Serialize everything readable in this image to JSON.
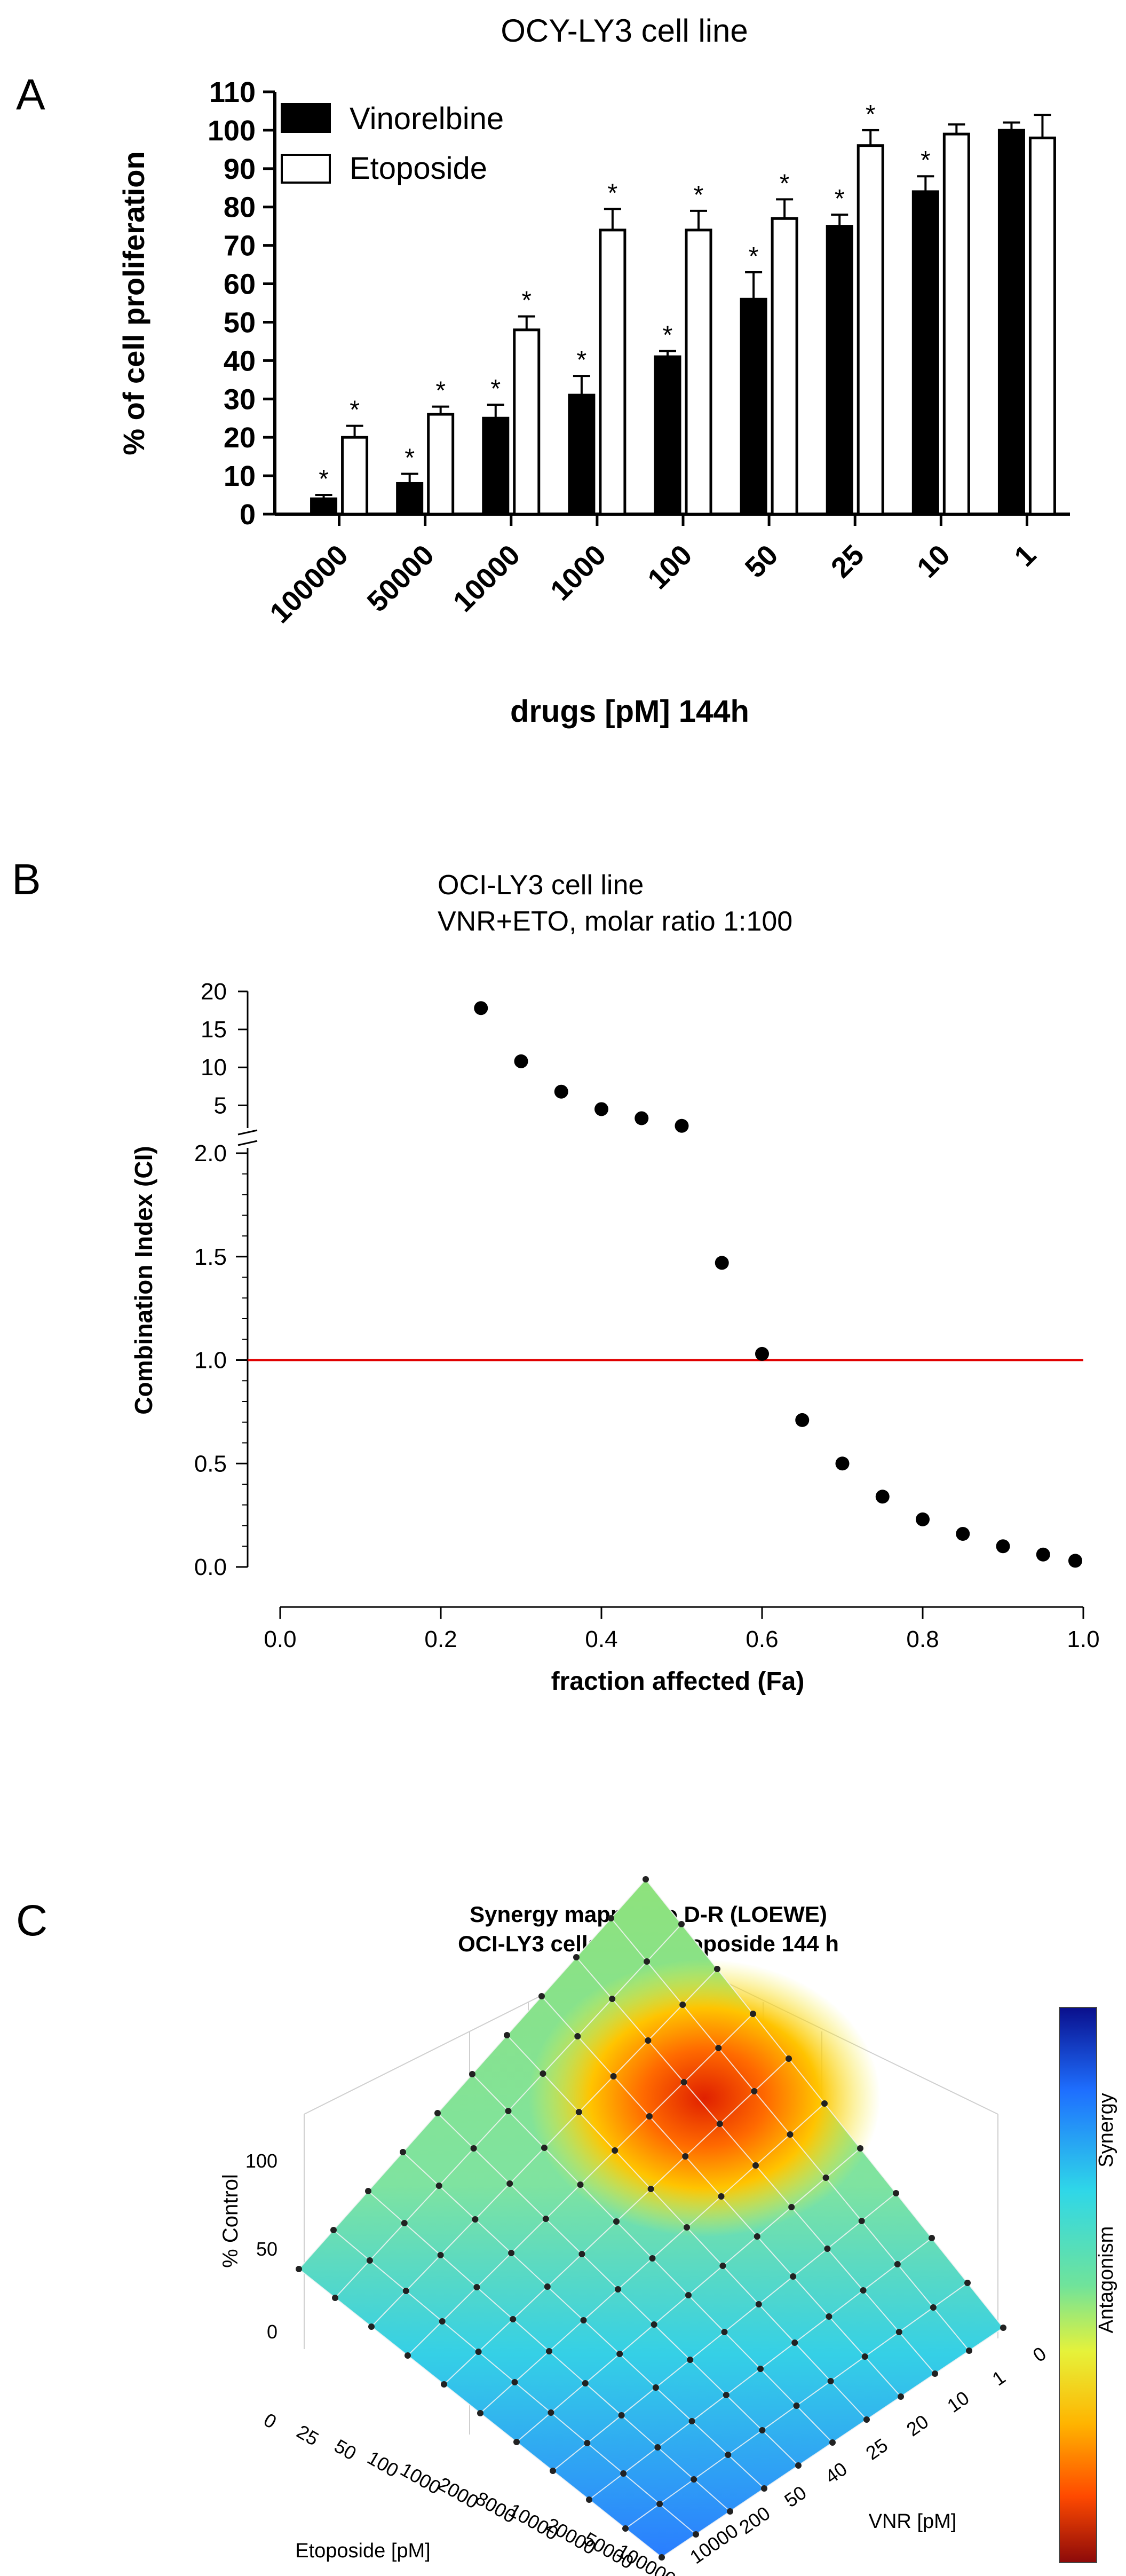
{
  "panel_labels": {
    "a": "A",
    "b": "B",
    "c": "C"
  },
  "colors": {
    "vinorelbine": "#000000",
    "etoposide": "#ffffff",
    "reference_line": "#e00000",
    "points": "#000000"
  },
  "chart_data": [
    {
      "panel": "A",
      "type": "bar",
      "title": "OCY-LY3 cell line",
      "xlabel": "drugs [pM] 144h",
      "ylabel": "% of cell proliferation",
      "categories": [
        "100000",
        "50000",
        "10000",
        "1000",
        "100",
        "50",
        "25",
        "10",
        "1"
      ],
      "ylim": [
        0,
        110
      ],
      "yticks": [
        0,
        10,
        20,
        30,
        40,
        50,
        60,
        70,
        80,
        90,
        100,
        110
      ],
      "legend_position": "top-left",
      "series": [
        {
          "name": "Vinorelbine",
          "color": "#000000",
          "values": [
            4,
            8,
            25,
            31,
            41,
            56,
            75,
            84,
            100
          ],
          "errors": [
            1,
            2.5,
            3.5,
            5,
            1.5,
            7,
            3,
            4,
            2
          ],
          "significant": [
            true,
            true,
            true,
            true,
            true,
            true,
            true,
            true,
            false
          ]
        },
        {
          "name": "Etoposide",
          "color": "#ffffff",
          "values": [
            20,
            26,
            48,
            74,
            74,
            77,
            96,
            99,
            98
          ],
          "errors": [
            3,
            2,
            3.5,
            5.5,
            5,
            5,
            4,
            2.5,
            6
          ],
          "significant": [
            true,
            true,
            true,
            true,
            true,
            true,
            true,
            false,
            false
          ]
        }
      ],
      "significance_mark": "*",
      "grid": false
    },
    {
      "panel": "B",
      "type": "scatter",
      "title": "OCI-LY3 cell line",
      "subtitle": "VNR+ETO, molar ratio 1:100",
      "xlabel": "fraction affected (Fa)",
      "ylabel": "Combination Index (CI)",
      "xlim": [
        0,
        1
      ],
      "xticks": [
        "0.0",
        "0.2",
        "0.4",
        "0.6",
        "0.8",
        "1.0"
      ],
      "y_upper_segment": {
        "ylim": [
          2,
          20
        ],
        "ticks": [
          5,
          10,
          15,
          20
        ]
      },
      "y_lower_segment": {
        "ylim": [
          0,
          2
        ],
        "ticks": [
          "0.0",
          "0.5",
          "1.0",
          "1.5",
          "2.0"
        ]
      },
      "reference_line_y": 1.0,
      "points": [
        {
          "x": 0.25,
          "y": 17.8
        },
        {
          "x": 0.3,
          "y": 10.8
        },
        {
          "x": 0.35,
          "y": 6.8
        },
        {
          "x": 0.4,
          "y": 4.5
        },
        {
          "x": 0.45,
          "y": 3.3
        },
        {
          "x": 0.5,
          "y": 2.3
        },
        {
          "x": 0.55,
          "y": 1.47
        },
        {
          "x": 0.6,
          "y": 1.03
        },
        {
          "x": 0.65,
          "y": 0.71
        },
        {
          "x": 0.7,
          "y": 0.5
        },
        {
          "x": 0.75,
          "y": 0.34
        },
        {
          "x": 0.8,
          "y": 0.23
        },
        {
          "x": 0.85,
          "y": 0.16
        },
        {
          "x": 0.9,
          "y": 0.1
        },
        {
          "x": 0.95,
          "y": 0.06
        },
        {
          "x": 0.99,
          "y": 0.03
        }
      ],
      "grid": false
    },
    {
      "panel": "C",
      "type": "heatmap",
      "title": "Synergy mapped to D-R (LOEWE)",
      "subtitle": "OCI-LY3 cells VNR+Etoposide 144 h",
      "zlabel": "% Control",
      "zticks": [
        "0",
        "50",
        "100"
      ],
      "xlabel": "Etoposide [pM]",
      "x_ticks": [
        "0",
        "25",
        "50",
        "100",
        "1000",
        "2000",
        "8000",
        "10000",
        "20000",
        "50000",
        "100000"
      ],
      "ylabel": "VNR [pM]",
      "y_ticks": [
        "0",
        "1",
        "10",
        "20",
        "25",
        "40",
        "50",
        "200",
        "10000"
      ],
      "colorbar_labels": [
        "Synergy",
        "Antagonism"
      ],
      "colorbar_colors": [
        "#0a0f8c",
        "#1e6fff",
        "#2fd7e8",
        "#6fe39b",
        "#e6f23a",
        "#ffb400",
        "#ff4a00",
        "#8c0a0a"
      ],
      "surface_note": "response surface shown as 3D mesh"
    }
  ]
}
